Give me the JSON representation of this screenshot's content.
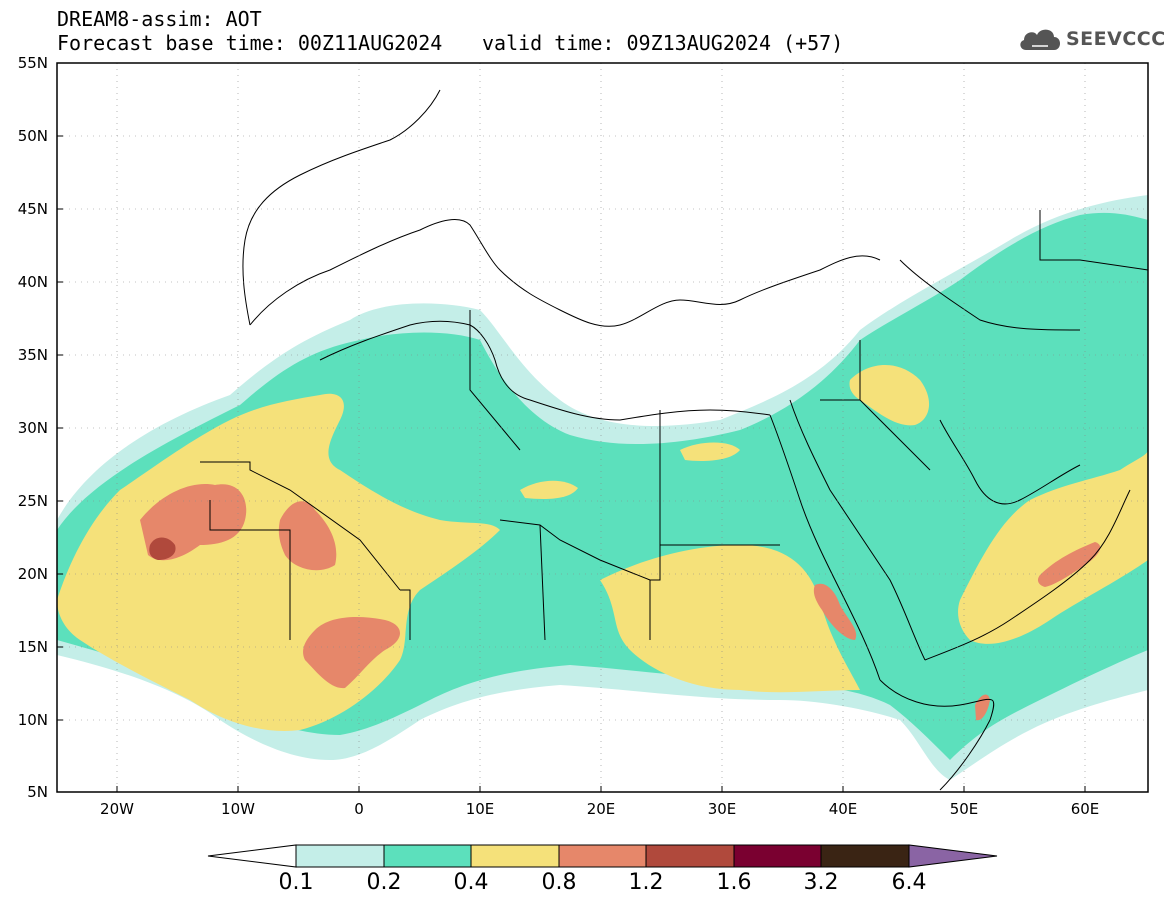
{
  "header": {
    "title": "DREAM8-assim: AOT",
    "base_time": "Forecast base time: 00Z11AUG2024",
    "valid_time": "valid time: 09Z13AUG2024 (+57)"
  },
  "logo": {
    "text": "SEEVCCC",
    "icon": "cloud-icon"
  },
  "map": {
    "lat_labels": [
      "55N",
      "50N",
      "45N",
      "40N",
      "35N",
      "30N",
      "25N",
      "20N",
      "15N",
      "10N",
      "5N"
    ],
    "lon_labels": [
      "20W",
      "10W",
      "0",
      "10E",
      "20E",
      "30E",
      "40E",
      "50E",
      "60E"
    ],
    "lat_range": [
      5,
      55
    ],
    "lon_range": [
      -25,
      65
    ]
  },
  "colorbar": {
    "labels": [
      "0.1",
      "0.2",
      "0.4",
      "0.8",
      "1.2",
      "1.6",
      "3.2",
      "6.4"
    ],
    "colors": [
      "#ffffff",
      "#c4eee8",
      "#5ce0bc",
      "#f5e17a",
      "#e6876a",
      "#b0493c",
      "#7a0030",
      "#3a2414",
      "#8a64a4"
    ]
  }
}
